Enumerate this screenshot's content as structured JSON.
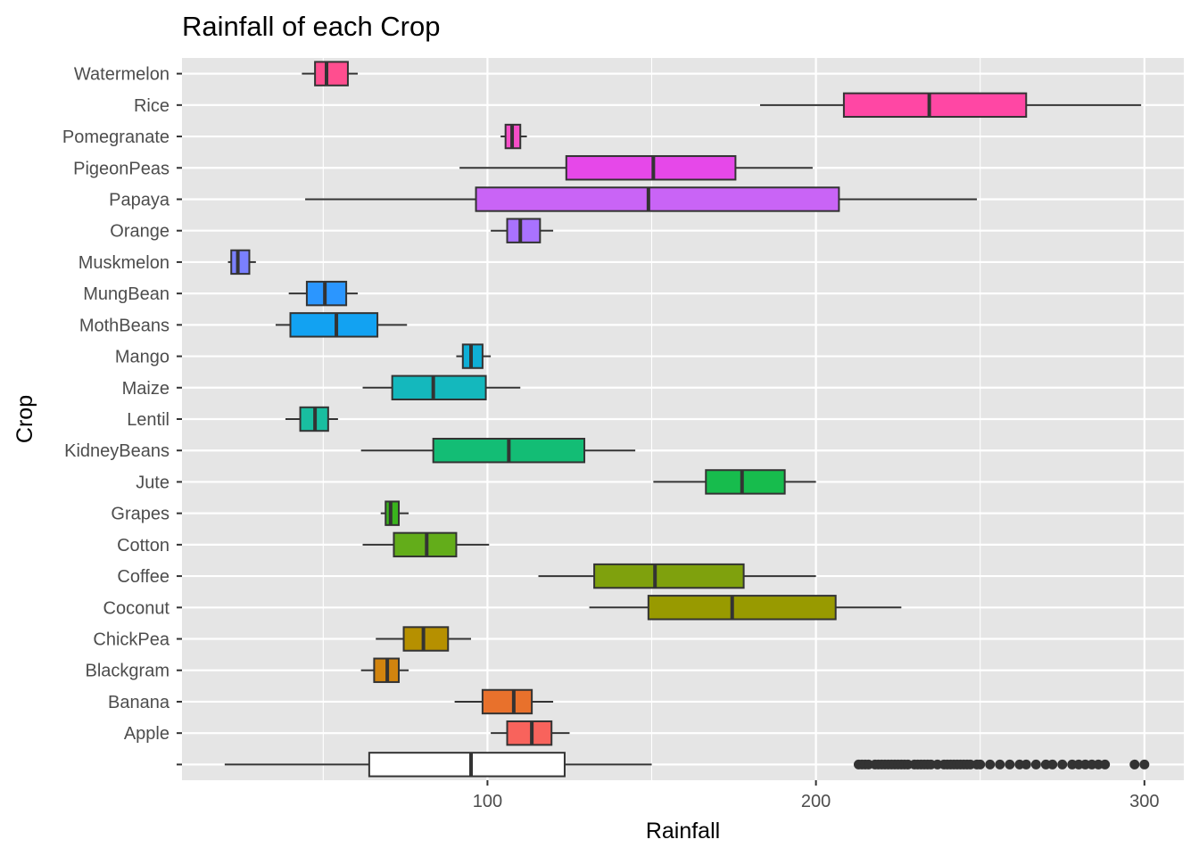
{
  "chart_data": {
    "type": "boxplot",
    "orientation": "horizontal",
    "title": "Rainfall of each Crop",
    "xlabel": "Rainfall",
    "ylabel": "Crop",
    "xlim": [
      7,
      312
    ],
    "x_ticks": [
      100,
      200,
      300
    ],
    "x_tick_labels": [
      "100",
      "200",
      "300"
    ],
    "grid": true,
    "legend": "none",
    "panel_background": "#e5e5e5",
    "categories": [
      "Watermelon",
      "Rice",
      "Pomegranate",
      "PigeonPeas",
      "Papaya",
      "Orange",
      "Muskmelon",
      "MungBean",
      "MothBeans",
      "Mango",
      "Maize",
      "Lentil",
      "KidneyBeans",
      "Jute",
      "Grapes",
      "Cotton",
      "Coffee",
      "Coconut",
      "ChickPea",
      "Blackgram",
      "Banana",
      "Apple",
      ""
    ],
    "boxes": [
      {
        "crop": "Watermelon",
        "min": 43.5,
        "q1": 47.5,
        "median": 51,
        "q3": 57.5,
        "max": 60.5,
        "color": "#FF4E8F"
      },
      {
        "crop": "Rice",
        "min": 183,
        "q1": 208.5,
        "median": 234.5,
        "q3": 264,
        "max": 299,
        "color": "#FF47A4"
      },
      {
        "crop": "Pomegranate",
        "min": 104,
        "q1": 105.5,
        "median": 107.5,
        "q3": 110,
        "max": 112,
        "color": "#F64EC8"
      },
      {
        "crop": "PigeonPeas",
        "min": 91.5,
        "q1": 124,
        "median": 150.5,
        "q3": 175.5,
        "max": 199,
        "color": "#E648E9"
      },
      {
        "crop": "Papaya",
        "min": 44.5,
        "q1": 96.5,
        "median": 149,
        "q3": 207,
        "max": 249,
        "color": "#C964F6"
      },
      {
        "crop": "Orange",
        "min": 101,
        "q1": 106,
        "median": 110,
        "q3": 116,
        "max": 120,
        "color": "#A972FF"
      },
      {
        "crop": "Muskmelon",
        "min": 21,
        "q1": 22,
        "median": 24,
        "q3": 27.5,
        "max": 29.5,
        "color": "#7A80FF"
      },
      {
        "crop": "MungBean",
        "min": 39.5,
        "q1": 45,
        "median": 50.5,
        "q3": 57,
        "max": 60.5,
        "color": "#2B96FF"
      },
      {
        "crop": "MothBeans",
        "min": 35.5,
        "q1": 40,
        "median": 54,
        "q3": 66.5,
        "max": 75.5,
        "color": "#12A2F2"
      },
      {
        "crop": "Mango",
        "min": 90.5,
        "q1": 92.5,
        "median": 95,
        "q3": 98.5,
        "max": 101,
        "color": "#0FAFD6"
      },
      {
        "crop": "Maize",
        "min": 62,
        "q1": 71,
        "median": 83.5,
        "q3": 99.5,
        "max": 110,
        "color": "#14B8BD"
      },
      {
        "crop": "Lentil",
        "min": 38.5,
        "q1": 43,
        "median": 47.5,
        "q3": 51.5,
        "max": 54.5,
        "color": "#19BEA0"
      },
      {
        "crop": "KidneyBeans",
        "min": 61.5,
        "q1": 83.5,
        "median": 106.5,
        "q3": 129.5,
        "max": 145,
        "color": "#13BD75"
      },
      {
        "crop": "Jute",
        "min": 150.5,
        "q1": 166.5,
        "median": 177.5,
        "q3": 190.5,
        "max": 200,
        "color": "#17BC4D"
      },
      {
        "crop": "Grapes",
        "min": 67.5,
        "q1": 69,
        "median": 70.5,
        "q3": 73,
        "max": 76,
        "color": "#3AB41D"
      },
      {
        "crop": "Cotton",
        "min": 62,
        "q1": 71.5,
        "median": 81.5,
        "q3": 90.5,
        "max": 100.5,
        "color": "#63AD1A"
      },
      {
        "crop": "Coffee",
        "min": 115.5,
        "q1": 132.5,
        "median": 151,
        "q3": 178,
        "max": 200,
        "color": "#7FA10D"
      },
      {
        "crop": "Coconut",
        "min": 131,
        "q1": 149,
        "median": 174.5,
        "q3": 206,
        "max": 226,
        "color": "#989A00"
      },
      {
        "crop": "ChickPea",
        "min": 66,
        "q1": 74.5,
        "median": 80.5,
        "q3": 88,
        "max": 95,
        "color": "#B69000"
      },
      {
        "crop": "Blackgram",
        "min": 61.5,
        "q1": 65.5,
        "median": 69.5,
        "q3": 73,
        "max": 76,
        "color": "#D2840E"
      },
      {
        "crop": "Banana",
        "min": 90,
        "q1": 98.5,
        "median": 108,
        "q3": 113.5,
        "max": 120,
        "color": "#E8712C"
      },
      {
        "crop": "Apple",
        "min": 101,
        "q1": 106,
        "median": 113.5,
        "q3": 119.5,
        "max": 125,
        "color": "#F8635C"
      },
      {
        "crop": "",
        "min": 20,
        "q1": 64,
        "median": 95,
        "q3": 123.5,
        "max": 150,
        "color": "#FFFFFF",
        "outliers": [
          213,
          214,
          215,
          216,
          218,
          219,
          220,
          221,
          222,
          223,
          224,
          225,
          226,
          227,
          228,
          230,
          231,
          232,
          233,
          234,
          235,
          237,
          239,
          240,
          241,
          242,
          243,
          244,
          245,
          246,
          247,
          249,
          250,
          253,
          256,
          259,
          262,
          264,
          267,
          270,
          272,
          275,
          278,
          280,
          282,
          284,
          286,
          288,
          297,
          300
        ]
      }
    ]
  }
}
